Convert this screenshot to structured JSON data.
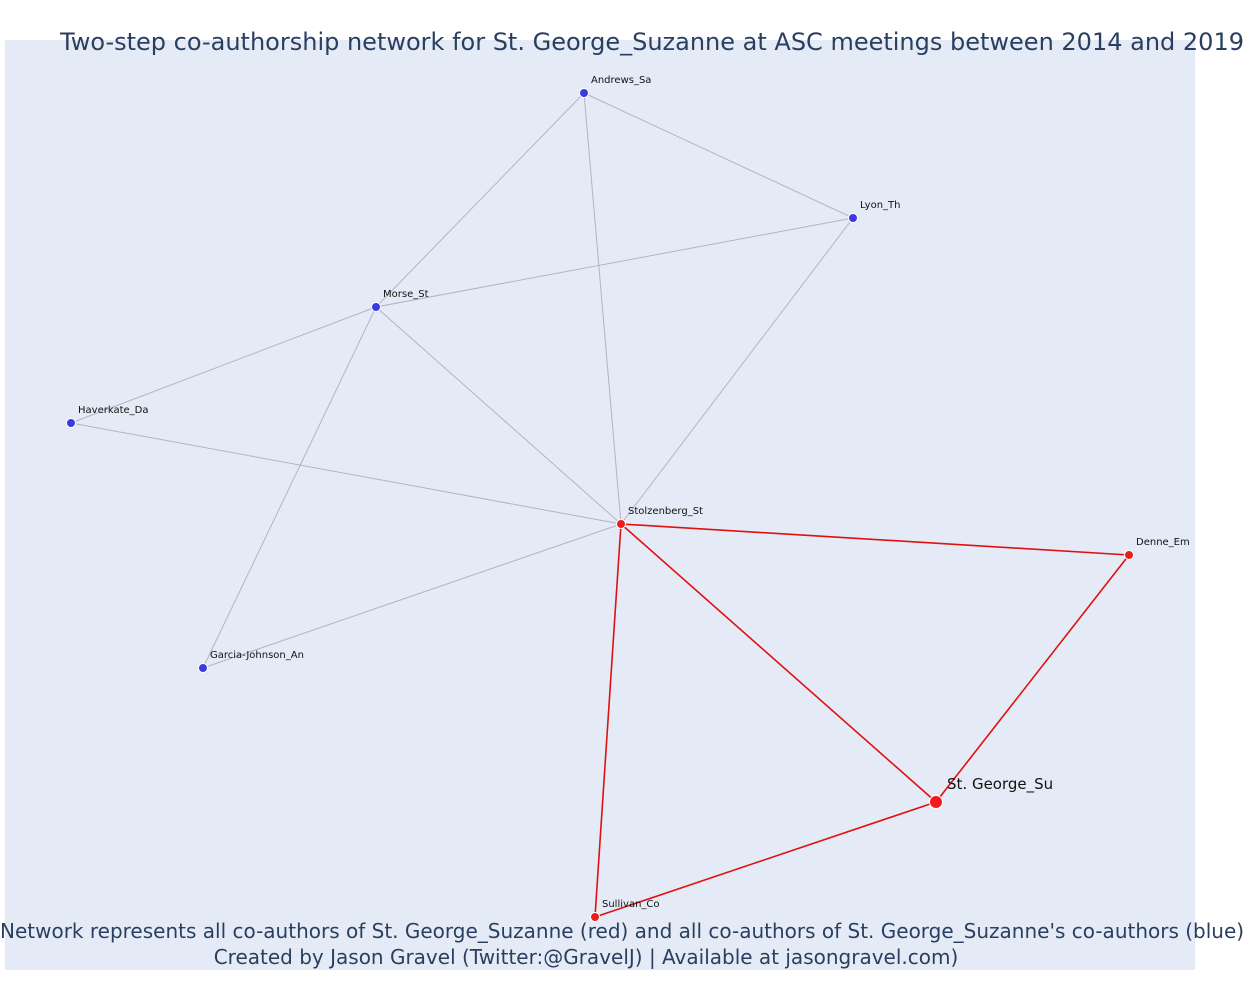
{
  "title": "Two-step co-authorship network for St. George_Suzanne at ASC meetings between 2014 and 2019",
  "caption": {
    "line1": "Network represents all co-authors of St. George_Suzanne (red) and all co-authors of St. George_Suzanne's co-authors (blue)",
    "line2": "Created by Jason Gravel (Twitter:@GravelJ) | Available at jasongravel.com)"
  },
  "colors": {
    "red": "#ef1c1c",
    "blue": "#3a3ae6",
    "grey_edge": "#b3b3c6",
    "red_edge": "#e01010"
  },
  "nodes": [
    {
      "id": "Andrews_Sa",
      "label": "Andrews_Sa",
      "group": "blue"
    },
    {
      "id": "Lyon_Th",
      "label": "Lyon_Th",
      "group": "blue"
    },
    {
      "id": "Morse_St",
      "label": "Morse_St",
      "group": "blue"
    },
    {
      "id": "Haverkate_Da",
      "label": "Haverkate_Da",
      "group": "blue"
    },
    {
      "id": "Garcia-Johnson_An",
      "label": "Garcia-Johnson_An",
      "group": "blue"
    },
    {
      "id": "Stolzenberg_St",
      "label": "Stolzenberg_St",
      "group": "red"
    },
    {
      "id": "Denne_Em",
      "label": "Denne_Em",
      "group": "red"
    },
    {
      "id": "St. George_Su",
      "label": "St. George_Su",
      "group": "red",
      "focal": true
    },
    {
      "id": "Sullivan_Co",
      "label": "Sullivan_Co",
      "group": "red"
    }
  ],
  "edges": [
    {
      "source": "Andrews_Sa",
      "target": "Lyon_Th",
      "type": "grey"
    },
    {
      "source": "Andrews_Sa",
      "target": "Morse_St",
      "type": "grey"
    },
    {
      "source": "Andrews_Sa",
      "target": "Stolzenberg_St",
      "type": "grey"
    },
    {
      "source": "Lyon_Th",
      "target": "Morse_St",
      "type": "grey"
    },
    {
      "source": "Lyon_Th",
      "target": "Stolzenberg_St",
      "type": "grey"
    },
    {
      "source": "Morse_St",
      "target": "Haverkate_Da",
      "type": "grey"
    },
    {
      "source": "Morse_St",
      "target": "Stolzenberg_St",
      "type": "grey"
    },
    {
      "source": "Morse_St",
      "target": "Garcia-Johnson_An",
      "type": "grey"
    },
    {
      "source": "Haverkate_Da",
      "target": "Stolzenberg_St",
      "type": "grey"
    },
    {
      "source": "Garcia-Johnson_An",
      "target": "Stolzenberg_St",
      "type": "grey"
    },
    {
      "source": "Stolzenberg_St",
      "target": "Denne_Em",
      "type": "red"
    },
    {
      "source": "Stolzenberg_St",
      "target": "St. George_Su",
      "type": "red"
    },
    {
      "source": "Stolzenberg_St",
      "target": "Sullivan_Co",
      "type": "red"
    },
    {
      "source": "Denne_Em",
      "target": "St. George_Su",
      "type": "red"
    },
    {
      "source": "St. George_Su",
      "target": "Sullivan_Co",
      "type": "red"
    }
  ]
}
